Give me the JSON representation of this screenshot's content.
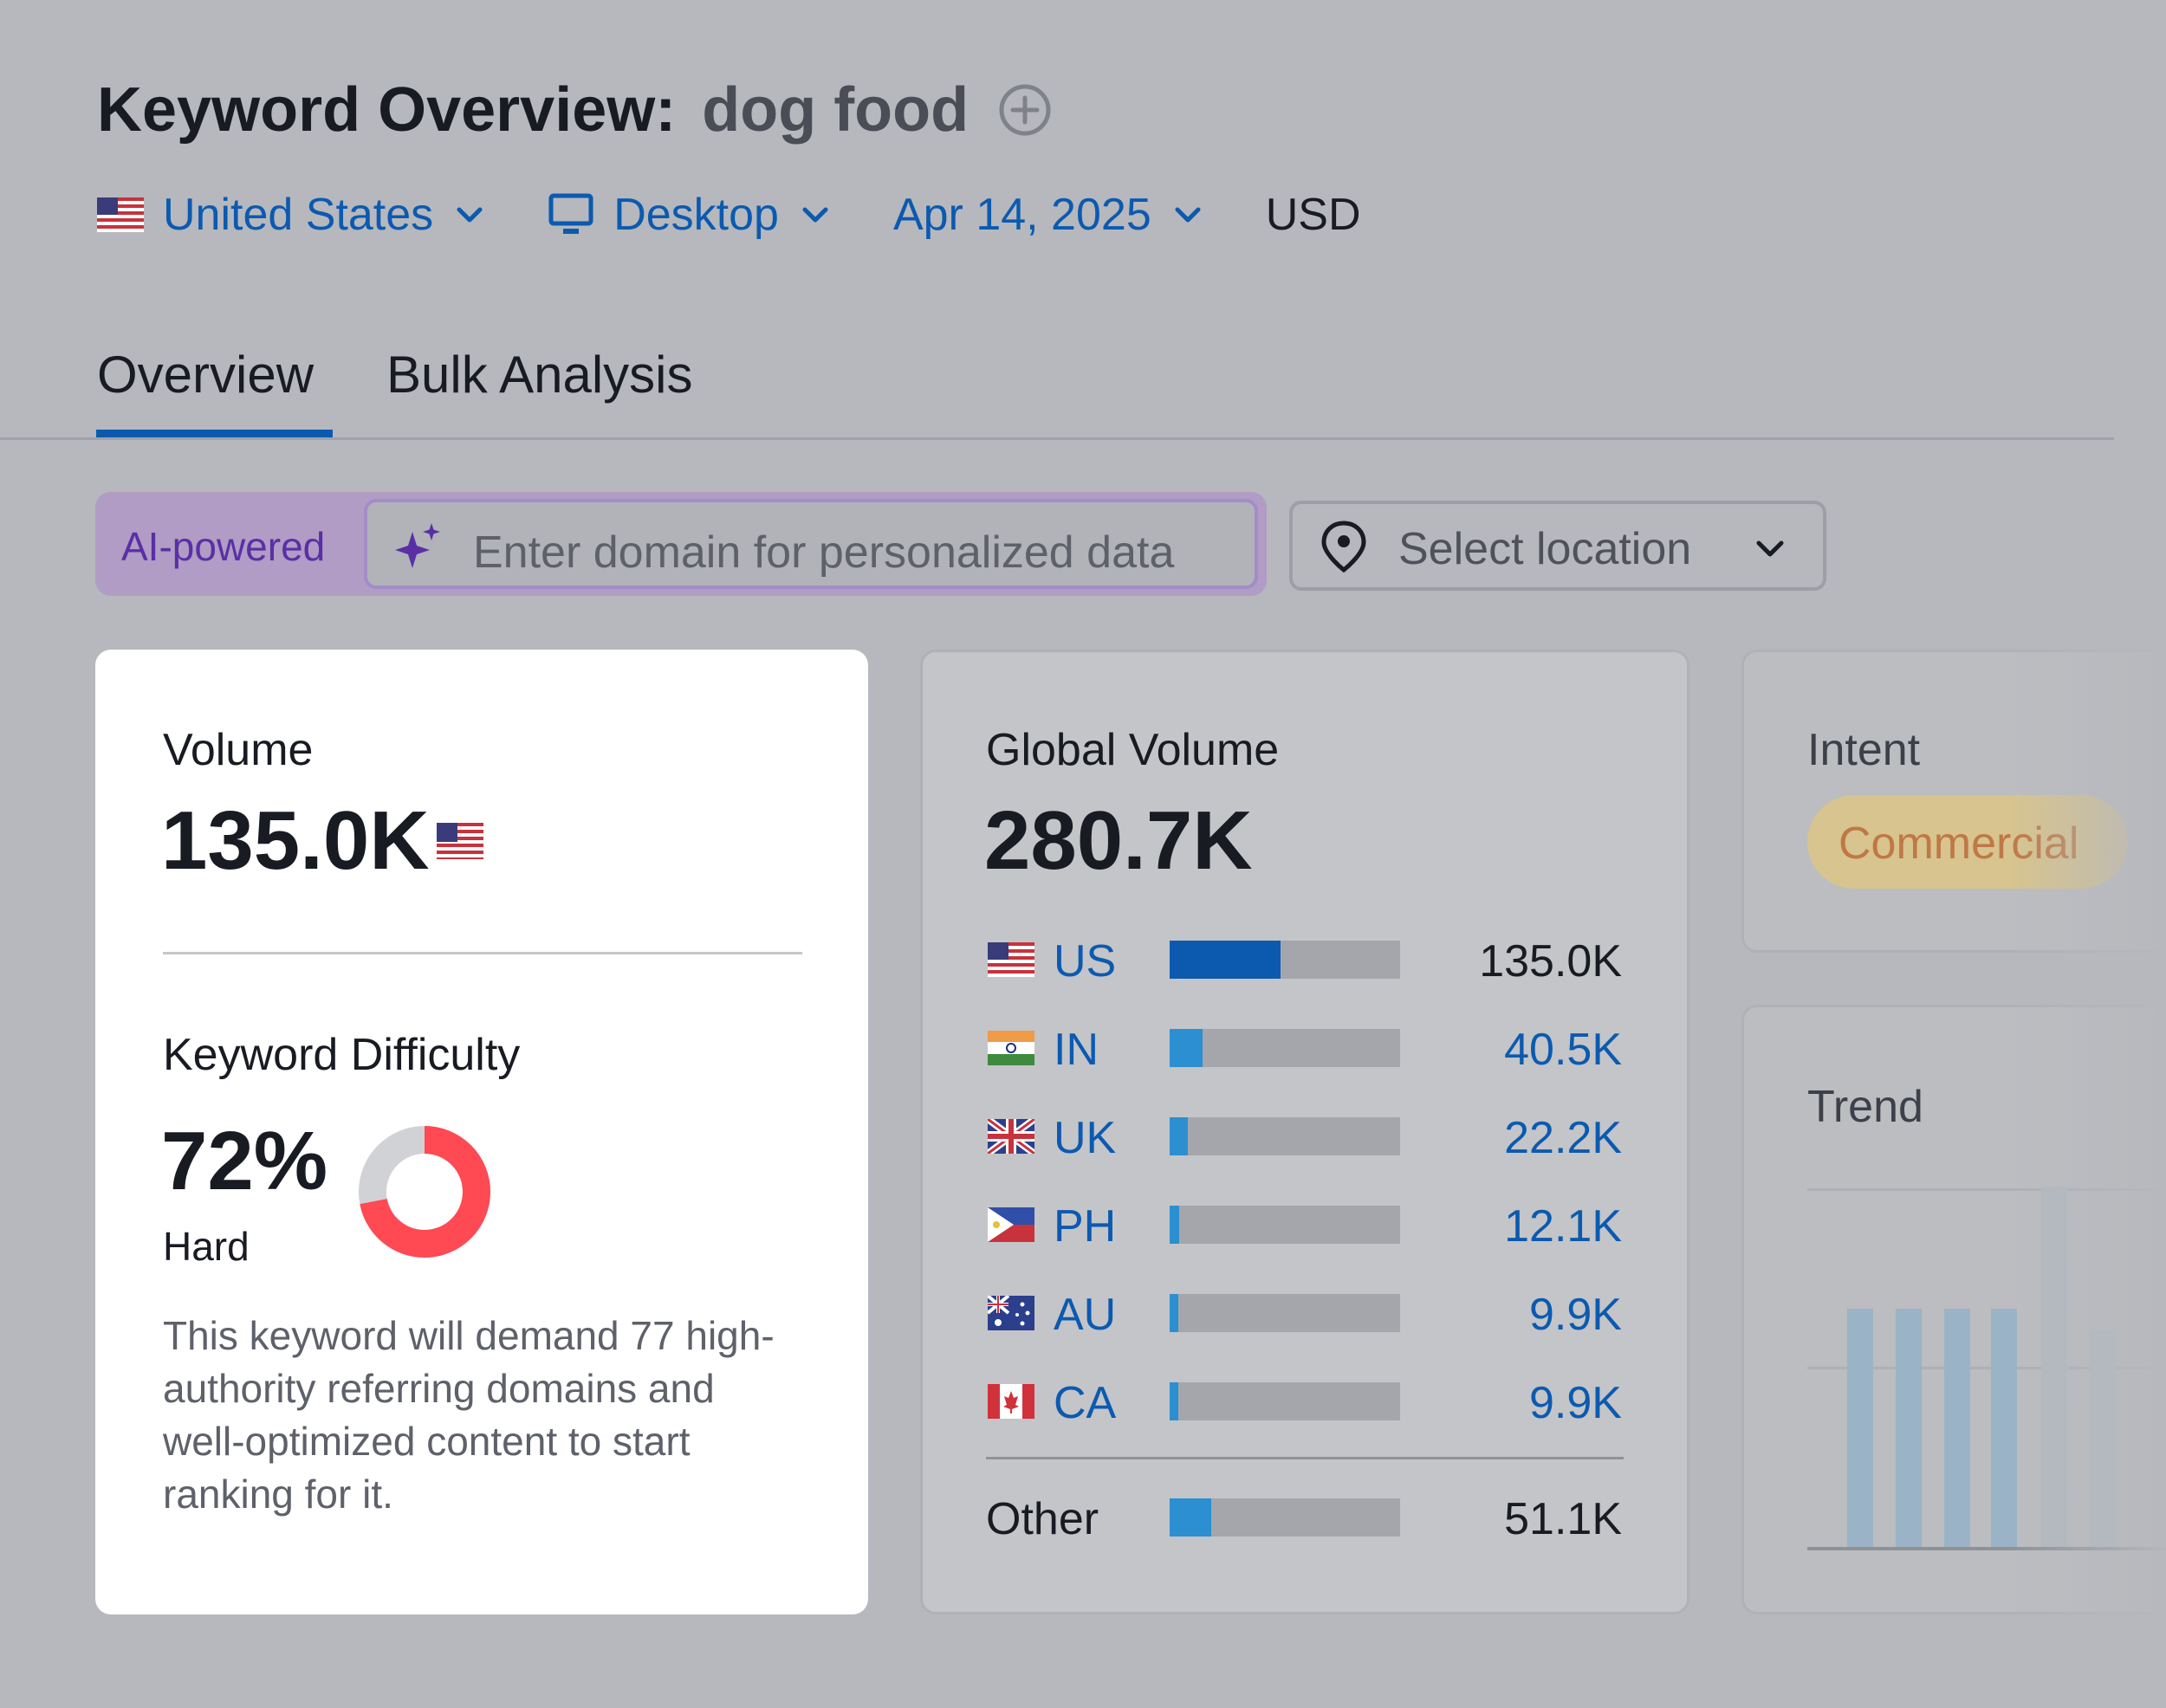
{
  "header": {
    "title_label": "Keyword Overview:",
    "keyword": "dog food",
    "add_icon": "plus-circle-icon"
  },
  "filters": {
    "country": "United States",
    "device": "Desktop",
    "date": "Apr 14, 2025",
    "currency": "USD"
  },
  "tabs": [
    {
      "label": "Overview",
      "active": true
    },
    {
      "label": "Bulk Analysis",
      "active": false
    }
  ],
  "ai_bar": {
    "badge": "AI-powered",
    "placeholder": "Enter domain for personalized data",
    "location_placeholder": "Select location"
  },
  "volume_card": {
    "label": "Volume",
    "value": "135.0K",
    "difficulty_label": "Keyword Difficulty",
    "difficulty_value": "72%",
    "difficulty_percent": 72,
    "difficulty_level": "Hard",
    "difficulty_color": "#ff4953",
    "description": "This keyword will demand 77 high-authority referring domains and well-optimized content to start ranking for it."
  },
  "global_card": {
    "label": "Global Volume",
    "value": "280.7K",
    "countries": [
      {
        "code": "US",
        "value": "135.0K",
        "share": 0.48,
        "color": "#0b5ab0",
        "linked": false
      },
      {
        "code": "IN",
        "value": "40.5K",
        "share": 0.144,
        "color": "#2b8fd1",
        "linked": true
      },
      {
        "code": "UK",
        "value": "22.2K",
        "share": 0.079,
        "color": "#2b8fd1",
        "linked": true
      },
      {
        "code": "PH",
        "value": "12.1K",
        "share": 0.043,
        "color": "#2b8fd1",
        "linked": true
      },
      {
        "code": "AU",
        "value": "9.9K",
        "share": 0.035,
        "color": "#2b8fd1",
        "linked": true
      },
      {
        "code": "CA",
        "value": "9.9K",
        "share": 0.035,
        "color": "#2b8fd1",
        "linked": true
      }
    ],
    "other": {
      "label": "Other",
      "value": "51.1K",
      "share": 0.182,
      "color": "#2b8fd1"
    }
  },
  "intent_card": {
    "label": "Intent",
    "value": "Commercial"
  },
  "trend_card": {
    "label": "Trend",
    "bars": [
      0.66,
      0.66,
      0.66,
      0.66,
      1.0,
      0.6
    ]
  }
}
